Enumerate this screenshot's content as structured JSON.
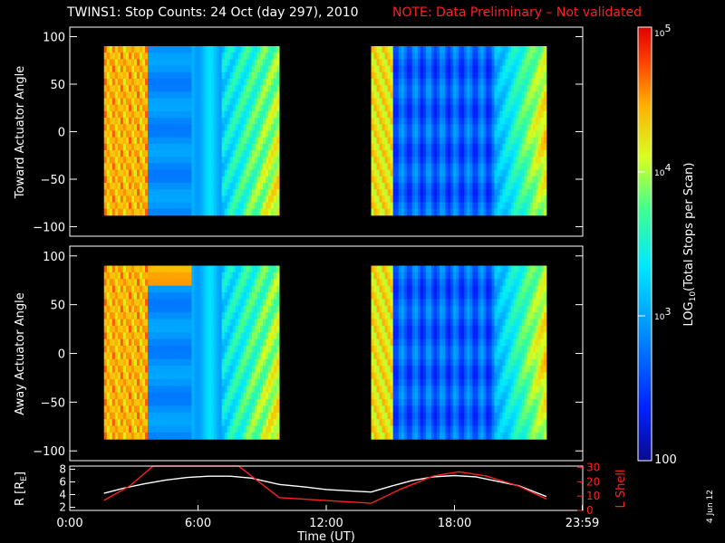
{
  "header": {
    "title": "TWINS1: Stop Counts: 24 Oct (day 297), 2010",
    "note": "NOTE: Data Preliminary – Not validated"
  },
  "stamp": "4 Jun 12",
  "colors": {
    "background": "#000000",
    "axes": "#ffffff",
    "note": "#ff2020",
    "l_shell": "#ff2020",
    "r_line": "#ffffff"
  },
  "chart_data": [
    {
      "type": "heatmap",
      "title": "",
      "ylabel": "Toward Actuator Angle",
      "xlabel": "",
      "ylim": [
        -110,
        110
      ],
      "yticks": [
        "100",
        "50",
        "0",
        "−50",
        "−100"
      ],
      "yticks_values": [
        100,
        50,
        0,
        -50,
        -100
      ],
      "x_range_hours": [
        0,
        24
      ],
      "y_extent": [
        -88,
        90
      ],
      "data_intervals_hours": [
        [
          1.6,
          9.8
        ],
        [
          14.1,
          22.3
        ]
      ],
      "colorscale": "log10 counts, blue (low) to red (high)"
    },
    {
      "type": "heatmap",
      "title": "",
      "ylabel": "Away Actuator Angle",
      "xlabel": "",
      "ylim": [
        -110,
        110
      ],
      "yticks": [
        "100",
        "50",
        "0",
        "−50",
        "−100"
      ],
      "yticks_values": [
        100,
        50,
        0,
        -50,
        -100
      ],
      "x_range_hours": [
        0,
        24
      ],
      "y_extent": [
        -88,
        90
      ],
      "data_intervals_hours": [
        [
          1.6,
          9.8
        ],
        [
          14.1,
          22.3
        ]
      ],
      "colorscale": "log10 counts, blue (low) to red (high)"
    },
    {
      "type": "line",
      "title": "",
      "xlabel": "Time (UT)",
      "xticks": [
        "0:00",
        "6:00",
        "12:00",
        "18:00",
        "23:59"
      ],
      "xticks_values": [
        0,
        6,
        12,
        18,
        23.98
      ],
      "xlim": [
        0,
        24
      ],
      "ylabel_left": "R [R",
      "ylabel_left_sub": "E",
      "ylabel_left_close": "]",
      "ylabel_right": "L Shell",
      "yticks_left": [
        "8",
        "6",
        "4",
        "2"
      ],
      "yticks_left_values": [
        8,
        6,
        4,
        2
      ],
      "ylim_left": [
        1.5,
        8.5
      ],
      "yticks_right": [
        "30",
        "20",
        "10",
        "0"
      ],
      "yticks_right_values": [
        30,
        20,
        10,
        0
      ],
      "ylim_right": [
        0,
        31
      ],
      "series": [
        {
          "axis": "left",
          "x": [
            1.6,
            2.5,
            3.5,
            4.5,
            5.5,
            6.5,
            7.5,
            8.5,
            9.8,
            11,
            12,
            13,
            14.1,
            15,
            16,
            17,
            18,
            19,
            20,
            21,
            22.3
          ],
          "y": [
            4.2,
            5.0,
            5.7,
            6.3,
            6.7,
            6.9,
            6.9,
            6.6,
            5.6,
            5.2,
            4.8,
            4.6,
            4.4,
            5.3,
            6.2,
            6.8,
            7.0,
            6.8,
            6.1,
            5.4,
            3.7
          ]
        },
        {
          "axis": "right",
          "x": [
            1.6,
            2.8,
            3.9,
            7.9,
            9.8,
            14.1,
            15.5,
            17,
            18.2,
            19.5,
            21,
            22.3
          ],
          "y": [
            7,
            17,
            31,
            31,
            9,
            5,
            15,
            24,
            27,
            24,
            17,
            8
          ]
        }
      ]
    }
  ],
  "colorbar": {
    "label_prefix": "LOG",
    "label_sub": "10",
    "label_suffix": "(Total Stops per Scan)",
    "tick_labels": [
      "10",
      "10",
      "10"
    ],
    "tick_exponents": [
      "5",
      "4",
      "3"
    ],
    "tick_values": [
      100000,
      10000,
      1000
    ],
    "bottom_label": "100",
    "range": [
      100,
      100000
    ]
  }
}
